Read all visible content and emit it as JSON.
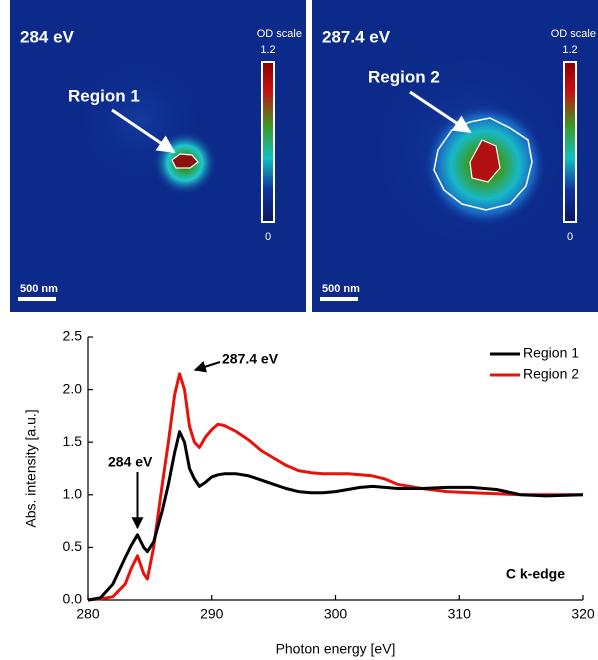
{
  "images": [
    {
      "label": "284 eV",
      "colorbar_title": "OD scale",
      "colorbar_max": 1.2,
      "colorbar_min": 0,
      "region": "Region 1",
      "scale_bar": "500 nm"
    },
    {
      "label": "287.4 eV",
      "colorbar_title": "OD scale",
      "colorbar_max": 1.2,
      "colorbar_min": 0,
      "region": "Region 2",
      "scale_bar": "500 nm"
    }
  ],
  "chart_data": {
    "type": "line",
    "xlabel": "Photon energy [eV]",
    "ylabel": "Abs. intensity [a.u.]",
    "x": [
      280,
      281,
      282,
      283,
      283.5,
      284,
      284.5,
      284.8,
      285.3,
      286,
      286.5,
      287,
      287.4,
      287.8,
      288.2,
      288.6,
      289,
      289.5,
      290,
      290.5,
      291,
      292,
      293,
      294,
      295,
      296,
      297,
      298,
      299,
      300,
      301,
      302,
      303,
      304,
      305,
      307,
      309,
      311,
      313,
      315,
      317,
      320
    ],
    "series": [
      {
        "name": "Region 1",
        "color": "#000000",
        "values": [
          0,
          0.02,
          0.15,
          0.4,
          0.52,
          0.62,
          0.5,
          0.46,
          0.55,
          0.85,
          1.1,
          1.4,
          1.6,
          1.5,
          1.25,
          1.15,
          1.08,
          1.12,
          1.17,
          1.19,
          1.2,
          1.2,
          1.18,
          1.14,
          1.1,
          1.06,
          1.03,
          1.02,
          1.02,
          1.03,
          1.05,
          1.07,
          1.08,
          1.07,
          1.06,
          1.06,
          1.07,
          1.07,
          1.05,
          1.0,
          0.99,
          1.0
        ]
      },
      {
        "name": "Region 2",
        "color": "#e8120c",
        "values": [
          0,
          0.01,
          0.03,
          0.15,
          0.3,
          0.42,
          0.25,
          0.2,
          0.5,
          1.1,
          1.5,
          1.95,
          2.15,
          2.0,
          1.65,
          1.5,
          1.45,
          1.55,
          1.62,
          1.67,
          1.66,
          1.6,
          1.52,
          1.42,
          1.35,
          1.28,
          1.23,
          1.21,
          1.2,
          1.2,
          1.2,
          1.19,
          1.18,
          1.15,
          1.1,
          1.06,
          1.03,
          1.02,
          1.01,
          1.0,
          1.0,
          1.0
        ]
      }
    ],
    "xlim": [
      280,
      320
    ],
    "xticks": [
      280,
      290,
      300,
      310,
      320
    ],
    "ylim": [
      0,
      2.5
    ],
    "yticks": [
      {
        "value": 0,
        "label": "0.0"
      },
      {
        "value": 0.5,
        "label": "0.5"
      },
      {
        "value": 1,
        "label": "1.0"
      },
      {
        "value": 1.5,
        "label": "1.5"
      },
      {
        "value": 2,
        "label": "2.0"
      },
      {
        "value": 2.5,
        "label": "2.5"
      }
    ],
    "legend": "upper right",
    "annotations": [
      "284 eV",
      "287.4 eV",
      "C k-edge"
    ]
  }
}
